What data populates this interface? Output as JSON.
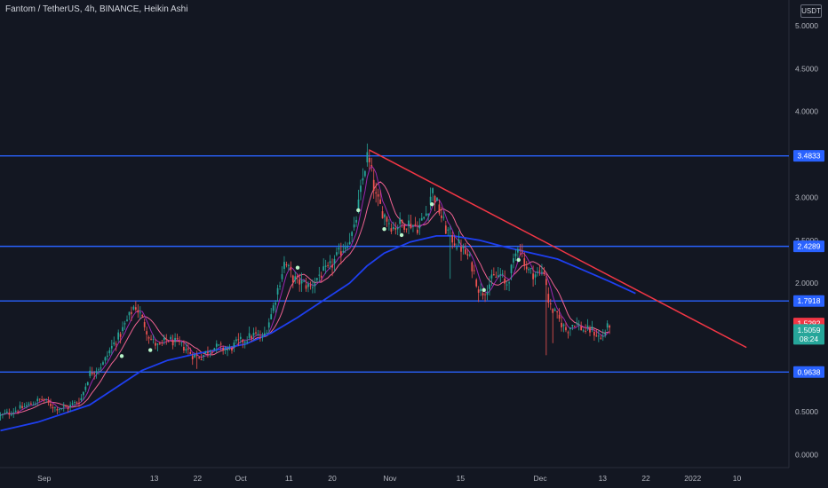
{
  "header": {
    "title": "Fantom / TetherUS, 4h, BINANCE, Heikin Ashi",
    "currency": "USDT"
  },
  "colors": {
    "background": "#131722",
    "axis_text": "#b2b5be",
    "candle_up": "#26a69a",
    "candle_down": "#ef5350",
    "level_line": "#2962ff",
    "trend_line": "#f23645",
    "ma_fast": "#9c27b0",
    "ma_medium": "#f06292",
    "ma_slow": "#1e3ff0",
    "marker": "#b9f6ca",
    "last_price_bg": "#26a69a",
    "prev_price_bg": "#f23645"
  },
  "chart_data": {
    "type": "candlestick",
    "y_axis": {
      "ticks": [
        5.0,
        4.5,
        4.0,
        3.0,
        2.5,
        2.0,
        0.5,
        0.0
      ],
      "tick_labels": [
        "5.0000",
        "4.5000",
        "4.0000",
        "3.0000",
        "2.5000",
        "2.0000",
        "0.5000",
        "0.0000"
      ],
      "ylim": [
        -0.15,
        5.3
      ]
    },
    "x_axis": {
      "ticks": [
        {
          "label": "Sep",
          "x": 0.275
        },
        {
          "label": "13",
          "x": 1.545
        },
        {
          "label": "22",
          "x": 2.045
        },
        {
          "label": "Oct",
          "x": 2.545
        },
        {
          "label": "11",
          "x": 3.1
        },
        {
          "label": "20",
          "x": 3.6
        },
        {
          "label": "Nov",
          "x": 4.265
        },
        {
          "label": "15",
          "x": 5.08
        },
        {
          "label": "Dec",
          "x": 6.0
        },
        {
          "label": "13",
          "x": 6.72
        },
        {
          "label": "22",
          "x": 7.22
        },
        {
          "label": "2022",
          "x": 7.76
        },
        {
          "label": "10",
          "x": 8.27
        }
      ],
      "xlim": [
        -0.235,
        8.87
      ]
    },
    "price_labels": {
      "levels": [
        "3.4833",
        "2.4289",
        "1.7918",
        "0.9638"
      ],
      "prev": "1.5292",
      "last": "1.5059",
      "countdown": "08:24"
    },
    "horizontal_levels": [
      3.4833,
      2.4289,
      1.7918,
      0.9638
    ],
    "trendline": {
      "x1": 4.03,
      "y1": 3.55,
      "x2": 8.38,
      "y2": 1.25
    },
    "ohlc_anchors": [
      [
        -0.23,
        0.45
      ],
      [
        0.1,
        0.58
      ],
      [
        0.25,
        0.65
      ],
      [
        0.4,
        0.55
      ],
      [
        0.55,
        0.55
      ],
      [
        0.7,
        0.65
      ],
      [
        0.8,
        0.95
      ],
      [
        0.95,
        1.05
      ],
      [
        1.05,
        1.25
      ],
      [
        1.15,
        1.4
      ],
      [
        1.25,
        1.6
      ],
      [
        1.32,
        1.75
      ],
      [
        1.4,
        1.6
      ],
      [
        1.5,
        1.35
      ],
      [
        1.6,
        1.25
      ],
      [
        1.7,
        1.35
      ],
      [
        1.8,
        1.3
      ],
      [
        1.9,
        1.25
      ],
      [
        2.0,
        1.15
      ],
      [
        2.1,
        1.15
      ],
      [
        2.2,
        1.25
      ],
      [
        2.3,
        1.25
      ],
      [
        2.4,
        1.22
      ],
      [
        2.5,
        1.3
      ],
      [
        2.6,
        1.35
      ],
      [
        2.7,
        1.4
      ],
      [
        2.8,
        1.35
      ],
      [
        2.9,
        1.65
      ],
      [
        3.0,
        2.05
      ],
      [
        3.05,
        2.25
      ],
      [
        3.15,
        2.05
      ],
      [
        3.25,
        2.0
      ],
      [
        3.35,
        1.95
      ],
      [
        3.45,
        2.1
      ],
      [
        3.55,
        2.15
      ],
      [
        3.65,
        2.3
      ],
      [
        3.75,
        2.45
      ],
      [
        3.85,
        2.6
      ],
      [
        3.95,
        3.2
      ],
      [
        4.0,
        3.48
      ],
      [
        4.05,
        3.3
      ],
      [
        4.1,
        3.0
      ],
      [
        4.2,
        2.8
      ],
      [
        4.3,
        2.65
      ],
      [
        4.4,
        2.7
      ],
      [
        4.5,
        2.7
      ],
      [
        4.6,
        2.65
      ],
      [
        4.7,
        2.85
      ],
      [
        4.75,
        3.1
      ],
      [
        4.8,
        2.95
      ],
      [
        4.9,
        2.65
      ],
      [
        5.0,
        2.5
      ],
      [
        5.1,
        2.4
      ],
      [
        5.2,
        2.25
      ],
      [
        5.3,
        1.9
      ],
      [
        5.35,
        1.9
      ],
      [
        5.45,
        2.05
      ],
      [
        5.55,
        2.1
      ],
      [
        5.6,
        1.95
      ],
      [
        5.7,
        2.25
      ],
      [
        5.75,
        2.5
      ],
      [
        5.85,
        2.15
      ],
      [
        5.95,
        2.1
      ],
      [
        6.05,
        2.15
      ],
      [
        6.1,
        1.75
      ],
      [
        6.2,
        1.6
      ],
      [
        6.3,
        1.45
      ],
      [
        6.4,
        1.55
      ],
      [
        6.5,
        1.45
      ],
      [
        6.6,
        1.45
      ],
      [
        6.7,
        1.35
      ],
      [
        6.8,
        1.52
      ]
    ],
    "candle_count": 280,
    "candle_x_range": [
      -0.23,
      6.8
    ],
    "ma_fast_lag": 4,
    "ma_medium_lag": 10,
    "ma_slow": [
      [
        -0.23,
        0.28
      ],
      [
        0.2,
        0.38
      ],
      [
        0.5,
        0.48
      ],
      [
        0.8,
        0.58
      ],
      [
        1.1,
        0.78
      ],
      [
        1.4,
        0.98
      ],
      [
        1.7,
        1.1
      ],
      [
        2.0,
        1.17
      ],
      [
        2.3,
        1.23
      ],
      [
        2.6,
        1.29
      ],
      [
        2.9,
        1.42
      ],
      [
        3.2,
        1.6
      ],
      [
        3.5,
        1.8
      ],
      [
        3.8,
        2.0
      ],
      [
        4.0,
        2.2
      ],
      [
        4.2,
        2.35
      ],
      [
        4.5,
        2.48
      ],
      [
        4.8,
        2.55
      ],
      [
        5.0,
        2.55
      ],
      [
        5.3,
        2.5
      ],
      [
        5.6,
        2.42
      ],
      [
        5.9,
        2.35
      ],
      [
        6.2,
        2.28
      ],
      [
        6.5,
        2.15
      ],
      [
        6.8,
        2.02
      ],
      [
        7.1,
        1.88
      ]
    ],
    "markers": [
      [
        1.17,
        1.15
      ],
      [
        1.5,
        1.22
      ],
      [
        3.2,
        2.18
      ],
      [
        3.9,
        2.85
      ],
      [
        4.2,
        2.63
      ],
      [
        4.4,
        2.56
      ],
      [
        4.75,
        2.92
      ],
      [
        5.35,
        1.92
      ],
      [
        5.75,
        2.27
      ]
    ]
  }
}
